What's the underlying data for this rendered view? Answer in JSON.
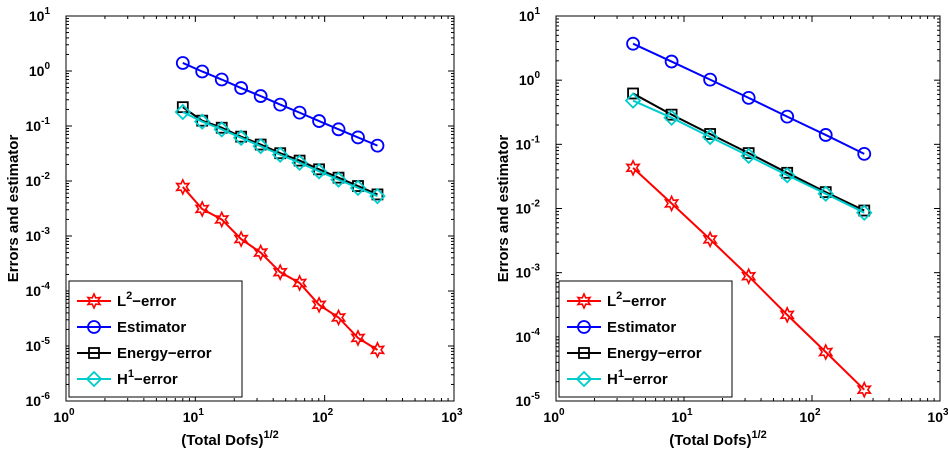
{
  "chart_data": [
    {
      "type": "line",
      "scale": "log-log",
      "xlabel": "(Total Dofs)",
      "xlabel_sup": "1/2",
      "ylabel": "Errors and estimator",
      "xlim": [
        1,
        1000
      ],
      "ylim": [
        1e-06,
        10
      ],
      "x_ticks": [
        {
          "base": "10",
          "exp": "0"
        },
        {
          "base": "10",
          "exp": "1"
        },
        {
          "base": "10",
          "exp": "2"
        },
        {
          "base": "10",
          "exp": "3"
        }
      ],
      "y_ticks": [
        {
          "base": "10",
          "exp": "-6"
        },
        {
          "base": "10",
          "exp": "-5"
        },
        {
          "base": "10",
          "exp": "-4"
        },
        {
          "base": "10",
          "exp": "-3"
        },
        {
          "base": "10",
          "exp": "-2"
        },
        {
          "base": "10",
          "exp": "-1"
        },
        {
          "base": "10",
          "exp": "0"
        },
        {
          "base": "10",
          "exp": "1"
        }
      ],
      "legend_position": "bottom-left",
      "x": [
        8,
        11.3,
        16,
        22.6,
        32,
        45.3,
        64,
        90.5,
        128,
        181,
        256
      ],
      "series": [
        {
          "name": "L",
          "name_sup": "2",
          "name_suffix": "−error",
          "color": "#ff0000",
          "marker": "hexagram",
          "values": [
            0.0078,
            0.0031,
            0.002,
            0.00088,
            0.0005,
            0.00022,
            0.00014,
            5.6e-05,
            3.3e-05,
            1.4e-05,
            8.5e-06
          ]
        },
        {
          "name": "Estimator",
          "color": "#0000ff",
          "marker": "circle",
          "values": [
            1.4,
            0.98,
            0.7,
            0.49,
            0.35,
            0.245,
            0.175,
            0.123,
            0.087,
            0.062,
            0.044
          ]
        },
        {
          "name": "Energy−error",
          "color": "#000000",
          "marker": "square",
          "values": [
            0.22,
            0.125,
            0.093,
            0.064,
            0.046,
            0.032,
            0.0235,
            0.0163,
            0.0115,
            0.0081,
            0.0057
          ]
        },
        {
          "name": "H",
          "name_sup": "1",
          "name_suffix": "−error",
          "color": "#00cccc",
          "marker": "diamond",
          "values": [
            0.18,
            0.12,
            0.087,
            0.061,
            0.043,
            0.03,
            0.0215,
            0.015,
            0.0106,
            0.0075,
            0.0053
          ]
        }
      ]
    },
    {
      "type": "line",
      "scale": "log-log",
      "xlabel": "(Total Dofs)",
      "xlabel_sup": "1/2",
      "ylabel": "Errors and estimator",
      "xlim": [
        1,
        1000
      ],
      "ylim": [
        1e-05,
        10
      ],
      "x_ticks": [
        {
          "base": "10",
          "exp": "0"
        },
        {
          "base": "10",
          "exp": "1"
        },
        {
          "base": "10",
          "exp": "2"
        },
        {
          "base": "10",
          "exp": "3"
        }
      ],
      "y_ticks": [
        {
          "base": "10",
          "exp": "-5"
        },
        {
          "base": "10",
          "exp": "-4"
        },
        {
          "base": "10",
          "exp": "-3"
        },
        {
          "base": "10",
          "exp": "-2"
        },
        {
          "base": "10",
          "exp": "-1"
        },
        {
          "base": "10",
          "exp": "0"
        },
        {
          "base": "10",
          "exp": "1"
        }
      ],
      "legend_position": "bottom-left",
      "x": [
        4,
        8,
        16,
        32,
        64,
        128,
        256
      ],
      "series": [
        {
          "name": "L",
          "name_sup": "2",
          "name_suffix": "−error",
          "color": "#ff0000",
          "marker": "hexagram",
          "values": [
            0.043,
            0.012,
            0.0033,
            0.00088,
            0.00022,
            5.8e-05,
            1.5e-05
          ]
        },
        {
          "name": "Estimator",
          "color": "#0000ff",
          "marker": "circle",
          "values": [
            3.7,
            1.95,
            1.02,
            0.53,
            0.27,
            0.14,
            0.071
          ]
        },
        {
          "name": "Energy−error",
          "color": "#000000",
          "marker": "square",
          "values": [
            0.62,
            0.29,
            0.145,
            0.073,
            0.036,
            0.018,
            0.0093
          ]
        },
        {
          "name": "H",
          "name_sup": "1",
          "name_suffix": "−error",
          "color": "#00cccc",
          "marker": "diamond",
          "values": [
            0.48,
            0.26,
            0.13,
            0.066,
            0.033,
            0.017,
            0.0086
          ]
        }
      ]
    }
  ]
}
